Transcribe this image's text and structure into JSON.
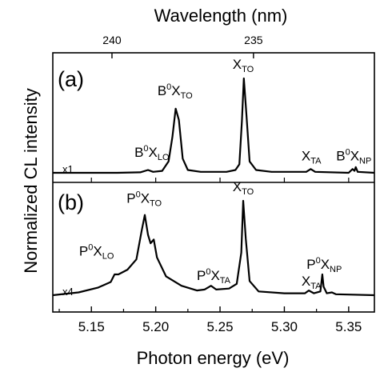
{
  "chart_data": {
    "type": "line",
    "xlabel": "Photon energy (eV)",
    "ylabel": "Normalized CL intensity",
    "top_xlabel": "Wavelength (nm)",
    "xlim": [
      5.12,
      5.37
    ],
    "xticks": [
      "5.15",
      "5.20",
      "5.25",
      "5.30",
      "5.35"
    ],
    "top_ticks": [
      {
        "label": "240",
        "energy": 5.166
      },
      {
        "label": "235",
        "energy": 5.276
      }
    ],
    "panels": [
      {
        "id": "a",
        "panel_label": "(a)",
        "multiplier": "x1",
        "baseline": 0.0,
        "series": [
          {
            "x": 5.12,
            "y": 0.0
          },
          {
            "x": 5.17,
            "y": 0.0
          },
          {
            "x": 5.188,
            "y": 0.005
          },
          {
            "x": 5.194,
            "y": 0.03
          },
          {
            "x": 5.198,
            "y": 0.01
          },
          {
            "x": 5.205,
            "y": 0.02
          },
          {
            "x": 5.21,
            "y": 0.12
          },
          {
            "x": 5.213,
            "y": 0.38
          },
          {
            "x": 5.2155,
            "y": 0.68
          },
          {
            "x": 5.218,
            "y": 0.56
          },
          {
            "x": 5.221,
            "y": 0.15
          },
          {
            "x": 5.225,
            "y": 0.03
          },
          {
            "x": 5.235,
            "y": 0.01
          },
          {
            "x": 5.255,
            "y": 0.01
          },
          {
            "x": 5.262,
            "y": 0.03
          },
          {
            "x": 5.265,
            "y": 0.09
          },
          {
            "x": 5.267,
            "y": 0.55
          },
          {
            "x": 5.2685,
            "y": 1.0
          },
          {
            "x": 5.2705,
            "y": 0.62
          },
          {
            "x": 5.273,
            "y": 0.12
          },
          {
            "x": 5.278,
            "y": 0.03
          },
          {
            "x": 5.29,
            "y": 0.01
          },
          {
            "x": 5.317,
            "y": 0.01
          },
          {
            "x": 5.3205,
            "y": 0.04
          },
          {
            "x": 5.324,
            "y": 0.01
          },
          {
            "x": 5.35,
            "y": 0.0
          },
          {
            "x": 5.353,
            "y": 0.04
          },
          {
            "x": 5.3545,
            "y": 0.02
          },
          {
            "x": 5.3555,
            "y": 0.06
          },
          {
            "x": 5.357,
            "y": 0.01
          },
          {
            "x": 5.37,
            "y": 0.0
          }
        ],
        "annotations": [
          {
            "base": "B",
            "sup": "0",
            "x": "X",
            "sub": "LO",
            "ex": 5.197,
            "ey": 0.17
          },
          {
            "base": "B",
            "sup": "0",
            "x": "X",
            "sub": "TO",
            "ex": 5.215,
            "ey": 0.82
          },
          {
            "base": "",
            "sup": "",
            "x": "X",
            "sub": "TO",
            "ex": 5.268,
            "ey": 1.1
          },
          {
            "base": "",
            "sup": "",
            "x": "X",
            "sub": "TA",
            "ex": 5.321,
            "ey": 0.13
          },
          {
            "base": "B",
            "sup": "0",
            "x": "X",
            "sub": "NP",
            "ex": 5.354,
            "ey": 0.13
          }
        ]
      },
      {
        "id": "b",
        "panel_label": "(b)",
        "multiplier": "x4",
        "baseline": 0.0,
        "series": [
          {
            "x": 5.12,
            "y": 0.0
          },
          {
            "x": 5.14,
            "y": 0.03
          },
          {
            "x": 5.155,
            "y": 0.08
          },
          {
            "x": 5.165,
            "y": 0.14
          },
          {
            "x": 5.168,
            "y": 0.22
          },
          {
            "x": 5.171,
            "y": 0.22
          },
          {
            "x": 5.178,
            "y": 0.27
          },
          {
            "x": 5.185,
            "y": 0.38
          },
          {
            "x": 5.189,
            "y": 0.68
          },
          {
            "x": 5.1915,
            "y": 0.85
          },
          {
            "x": 5.194,
            "y": 0.64
          },
          {
            "x": 5.196,
            "y": 0.55
          },
          {
            "x": 5.1985,
            "y": 0.59
          },
          {
            "x": 5.201,
            "y": 0.4
          },
          {
            "x": 5.208,
            "y": 0.2
          },
          {
            "x": 5.22,
            "y": 0.1
          },
          {
            "x": 5.232,
            "y": 0.05
          },
          {
            "x": 5.238,
            "y": 0.06
          },
          {
            "x": 5.243,
            "y": 0.1
          },
          {
            "x": 5.247,
            "y": 0.06
          },
          {
            "x": 5.257,
            "y": 0.07
          },
          {
            "x": 5.263,
            "y": 0.12
          },
          {
            "x": 5.2665,
            "y": 0.45
          },
          {
            "x": 5.268,
            "y": 1.0
          },
          {
            "x": 5.27,
            "y": 0.6
          },
          {
            "x": 5.273,
            "y": 0.15
          },
          {
            "x": 5.28,
            "y": 0.04
          },
          {
            "x": 5.3,
            "y": 0.02
          },
          {
            "x": 5.316,
            "y": 0.02
          },
          {
            "x": 5.319,
            "y": 0.05
          },
          {
            "x": 5.323,
            "y": 0.02
          },
          {
            "x": 5.328,
            "y": 0.04
          },
          {
            "x": 5.3295,
            "y": 0.22
          },
          {
            "x": 5.3305,
            "y": 0.09
          },
          {
            "x": 5.333,
            "y": 0.02
          },
          {
            "x": 5.337,
            "y": 0.03
          },
          {
            "x": 5.34,
            "y": 0.01
          },
          {
            "x": 5.37,
            "y": 0.0
          }
        ],
        "annotations": [
          {
            "base": "P",
            "sup": "0",
            "x": "X",
            "sub": "LO",
            "ex": 5.154,
            "ey": 0.42
          },
          {
            "base": "P",
            "sup": "0",
            "x": "X",
            "sub": "TO",
            "ex": 5.191,
            "ey": 0.98
          },
          {
            "base": "P",
            "sup": "0",
            "x": "X",
            "sub": "TA",
            "ex": 5.245,
            "ey": 0.16
          },
          {
            "base": "",
            "sup": "",
            "x": "X",
            "sub": "TO",
            "ex": 5.268,
            "ey": 1.1
          },
          {
            "base": "",
            "sup": "",
            "x": "X",
            "sub": "TA",
            "ex": 5.321,
            "ey": 0.1
          },
          {
            "base": "P",
            "sup": "0",
            "x": "X",
            "sub": "NP",
            "ex": 5.331,
            "ey": 0.28
          }
        ]
      }
    ]
  }
}
